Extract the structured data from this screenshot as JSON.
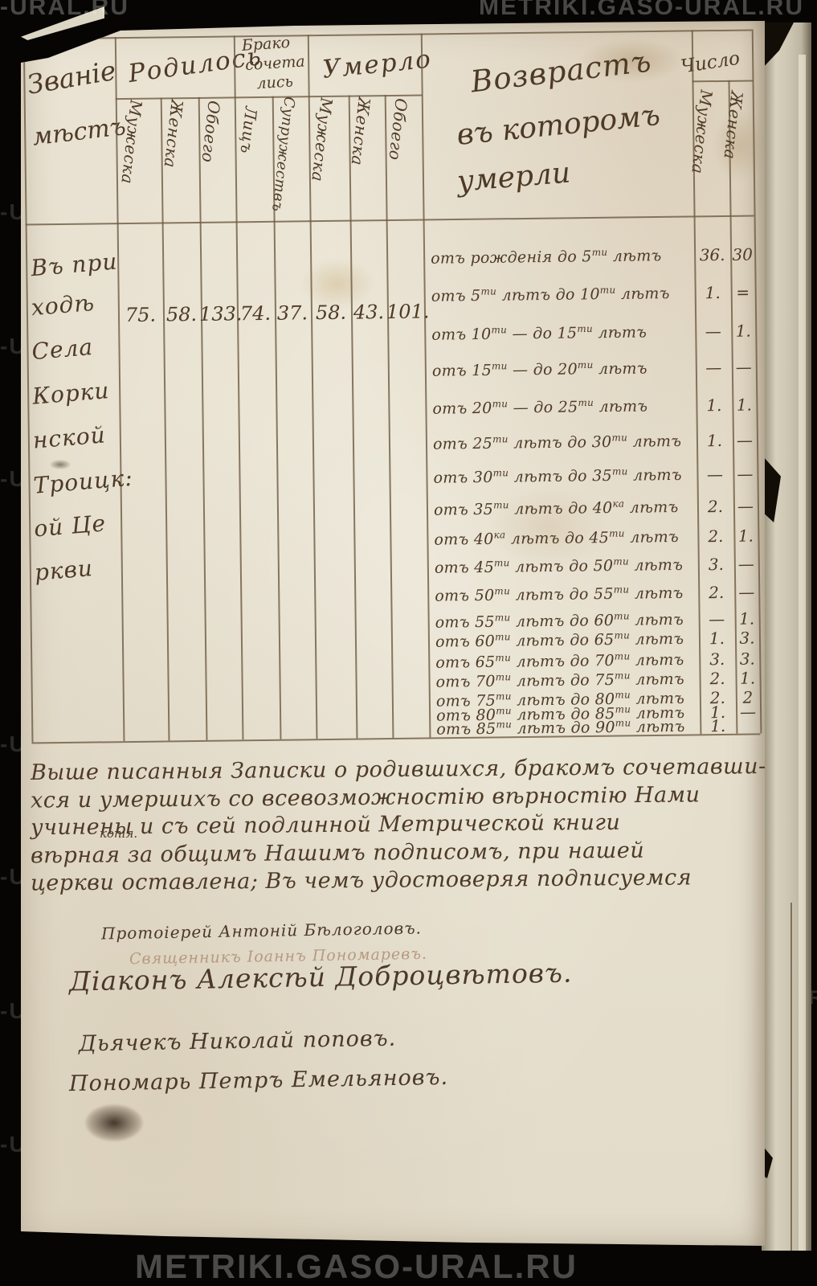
{
  "page": {
    "watermark_site": "METRIKI.GASO-URAL.RU",
    "watermark_fragment_left": "-URAL.RU",
    "watermark_fragment_edge": "-U",
    "watermark_fragment_right": "METRIKI.G"
  },
  "table": {
    "header": {
      "zvanie_lines": [
        "Званіе",
        "мѣстъ"
      ],
      "born": {
        "label": "Родилось",
        "subs": [
          "Мужеска",
          "Женска",
          "Обоего"
        ]
      },
      "married": {
        "label_lines": [
          "Брако",
          "сочета",
          "лись"
        ],
        "subs": [
          "Лицъ",
          "Супружествъ"
        ]
      },
      "died": {
        "label": "Умерло",
        "subs": [
          "Мужеска",
          "Женска",
          "Обоего"
        ]
      },
      "age": {
        "label_lines": [
          "Возврастъ",
          "въ которомъ",
          "умерли"
        ]
      },
      "count": {
        "label": "Число",
        "subs": [
          "Мужеска",
          "Женска"
        ]
      }
    },
    "place_lines": [
      "Въ при",
      "ходѣ",
      "Села",
      "Корки",
      "нской",
      "Троицк:",
      "ой Це",
      "ркви"
    ],
    "totals": {
      "born_m": "75.",
      "born_f": "58.",
      "born_total": "133.",
      "married_persons": "74.",
      "married_couples": "37.",
      "died_m": "58.",
      "died_f": "43.",
      "died_total": "101."
    },
    "age_rows": [
      {
        "label": "отъ рожденія до 5^ти лѣтъ",
        "m": "36.",
        "f": "30"
      },
      {
        "label": "отъ 5^ти лѣтъ  до 10^ти лѣтъ",
        "m": "1.",
        "f": "="
      },
      {
        "label": "отъ 10^ти  —  до 15^ти лѣтъ",
        "m": "—",
        "f": "1."
      },
      {
        "label": "отъ 15^ти  —  до 20^ти лѣтъ",
        "m": "—",
        "f": "—"
      },
      {
        "label": "отъ 20^ти  —  до 25^ти лѣтъ",
        "m": "1.",
        "f": "1."
      },
      {
        "label": "отъ 25^ти лѣтъ до 30^ти лѣтъ",
        "m": "1.",
        "f": "—"
      },
      {
        "label": "отъ 30^ти лѣтъ до 35^ти лѣтъ",
        "m": "—",
        "f": "—"
      },
      {
        "label": "отъ 35^ти лѣтъ до 40^ка лѣтъ",
        "m": "2.",
        "f": "—"
      },
      {
        "label": "отъ 40^ка лѣтъ до 45^ти лѣтъ",
        "m": "2.",
        "f": "1."
      },
      {
        "label": "отъ 45^ти лѣтъ до 50^ти лѣтъ",
        "m": "3.",
        "f": "—"
      },
      {
        "label": "отъ 50^ти лѣтъ до 55^ти лѣтъ",
        "m": "2.",
        "f": "—"
      },
      {
        "label": "отъ 55^ти лѣтъ до 60^ти лѣтъ",
        "m": "—",
        "f": "1."
      },
      {
        "label": "отъ 60^ти лѣтъ до 65^ти лѣтъ",
        "m": "1.",
        "f": "3."
      },
      {
        "label": "отъ 65^ти лѣтъ до 70^ти лѣтъ",
        "m": "3.",
        "f": "3."
      },
      {
        "label": "отъ 70^ти лѣтъ до 75^ти лѣтъ",
        "m": "2.",
        "f": "1."
      },
      {
        "label": "отъ 75^ти лѣтъ до 80^ти лѣтъ",
        "m": "2.",
        "f": "2"
      },
      {
        "label": "отъ 80^ти лѣтъ до 85^ти лѣтъ",
        "m": "1.",
        "f": "—"
      },
      {
        "label": "отъ 85^ти лѣтъ до 90^ти лѣтъ",
        "m": "1.",
        "f": ""
      }
    ]
  },
  "attestation": {
    "lines": [
      "Выше писанныя Записки о родившихся, бракомъ сочетавши-",
      "хся и умершихъ со всевозможностію вѣрностію Нами",
      "учинены и съ сей подлинной Метрической книги",
      "вѣрная  за общимъ Нашимъ подписомъ, при нашей",
      "церкви оставлена;  Въ чемъ удостоверяя подписуемся"
    ],
    "insertion": "копія."
  },
  "signatures": [
    "Протоіерей Антоній Бѣлоголовъ.",
    "Священникъ Іоаннъ Пономаревъ.",
    "Діаконъ Алексѣй Доброцвѣтовъ.",
    "Дьячекъ Николай поповъ.",
    "Пономарь Петръ Емельяновъ."
  ]
}
